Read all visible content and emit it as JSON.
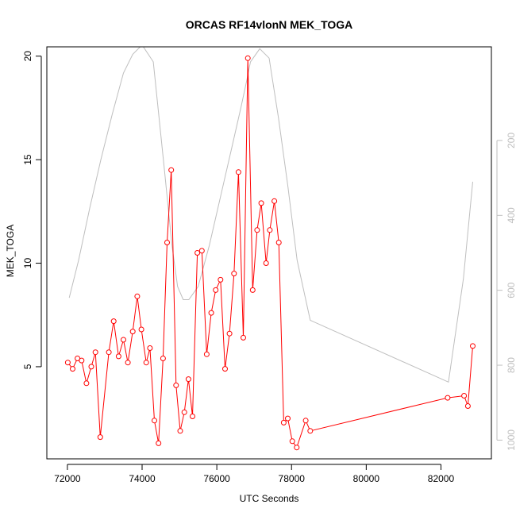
{
  "chart_data": {
    "type": "line",
    "title": "ORCAS RF14vlonN MEK_TOGA",
    "xlabel": "UTC Seconds",
    "ylabel": "MEK_TOGA",
    "xlim": [
      71450,
      83350
    ],
    "ylim": [
      0.55,
      20.45
    ],
    "xticks": [
      72000,
      74000,
      76000,
      78000,
      80000,
      82000
    ],
    "yticks": [
      5,
      10,
      15,
      20
    ],
    "colors": {
      "primary": "#ff0000",
      "secondary": "#bebebe",
      "axis": "#000000",
      "secondary_axis": "#bebebe"
    },
    "series": [
      {
        "values": [
          [
            72010,
            5.2
          ],
          [
            72140,
            4.9
          ],
          [
            72270,
            5.4
          ],
          [
            72380,
            5.3
          ],
          [
            72510,
            4.2
          ],
          [
            72640,
            5.0
          ],
          [
            72750,
            5.7
          ],
          [
            72880,
            1.6
          ],
          [
            73110,
            5.7
          ],
          [
            73240,
            7.2
          ],
          [
            73370,
            5.5
          ],
          [
            73500,
            6.3
          ],
          [
            73620,
            5.2
          ],
          [
            73750,
            6.7
          ],
          [
            73870,
            8.4
          ],
          [
            73980,
            6.8
          ],
          [
            74110,
            5.2
          ],
          [
            74210,
            5.9
          ],
          [
            74330,
            2.4
          ],
          [
            74440,
            1.3
          ],
          [
            74560,
            5.4
          ],
          [
            74670,
            11.0
          ],
          [
            74780,
            14.5
          ],
          [
            74910,
            4.1
          ],
          [
            75020,
            1.9
          ],
          [
            75130,
            2.8
          ],
          [
            75240,
            4.4
          ],
          [
            75350,
            2.6
          ],
          [
            75480,
            10.5
          ],
          [
            75600,
            10.6
          ],
          [
            75730,
            5.6
          ],
          [
            75850,
            7.6
          ],
          [
            75970,
            8.7
          ],
          [
            76100,
            9.2
          ],
          [
            76220,
            4.9
          ],
          [
            76340,
            6.6
          ],
          [
            76460,
            9.5
          ],
          [
            76580,
            14.4
          ],
          [
            76710,
            6.4
          ],
          [
            76830,
            19.9
          ],
          [
            76960,
            8.7
          ],
          [
            77080,
            11.6
          ],
          [
            77190,
            12.9
          ],
          [
            77320,
            10.0
          ],
          [
            77420,
            11.6
          ],
          [
            77540,
            13.0
          ],
          [
            77660,
            11.0
          ],
          [
            77790,
            2.3
          ],
          [
            77900,
            2.5
          ],
          [
            78020,
            1.4
          ],
          [
            78140,
            1.1
          ],
          [
            78380,
            2.4
          ],
          [
            78500,
            1.9
          ],
          [
            82180,
            3.5
          ],
          [
            82620,
            3.6
          ],
          [
            82720,
            3.1
          ],
          [
            82850,
            6.0
          ]
        ]
      }
    ],
    "secondary_axis": {
      "side": "right",
      "reversed": true,
      "ticks": [
        200,
        400,
        600,
        800,
        1000
      ],
      "lim": [
        -50,
        1050
      ],
      "series": [
        {
          "values": [
            [
              72050,
              620
            ],
            [
              72300,
              520
            ],
            [
              72600,
              380
            ],
            [
              72900,
              250
            ],
            [
              73200,
              130
            ],
            [
              73500,
              20
            ],
            [
              73750,
              -30
            ],
            [
              74000,
              -55
            ],
            [
              74300,
              -10
            ],
            [
              74600,
              280
            ],
            [
              74800,
              480
            ],
            [
              74950,
              590
            ],
            [
              75100,
              625
            ],
            [
              75250,
              625
            ],
            [
              75500,
              590
            ],
            [
              75800,
              480
            ],
            [
              76100,
              350
            ],
            [
              76400,
              220
            ],
            [
              76650,
              110
            ],
            [
              76800,
              40
            ],
            [
              76900,
              -10
            ],
            [
              77150,
              -45
            ],
            [
              77400,
              -20
            ],
            [
              77650,
              140
            ],
            [
              77900,
              320
            ],
            [
              78150,
              520
            ],
            [
              78500,
              680
            ],
            [
              82200,
              845
            ],
            [
              82600,
              570
            ],
            [
              82850,
              310
            ]
          ]
        }
      ]
    }
  }
}
